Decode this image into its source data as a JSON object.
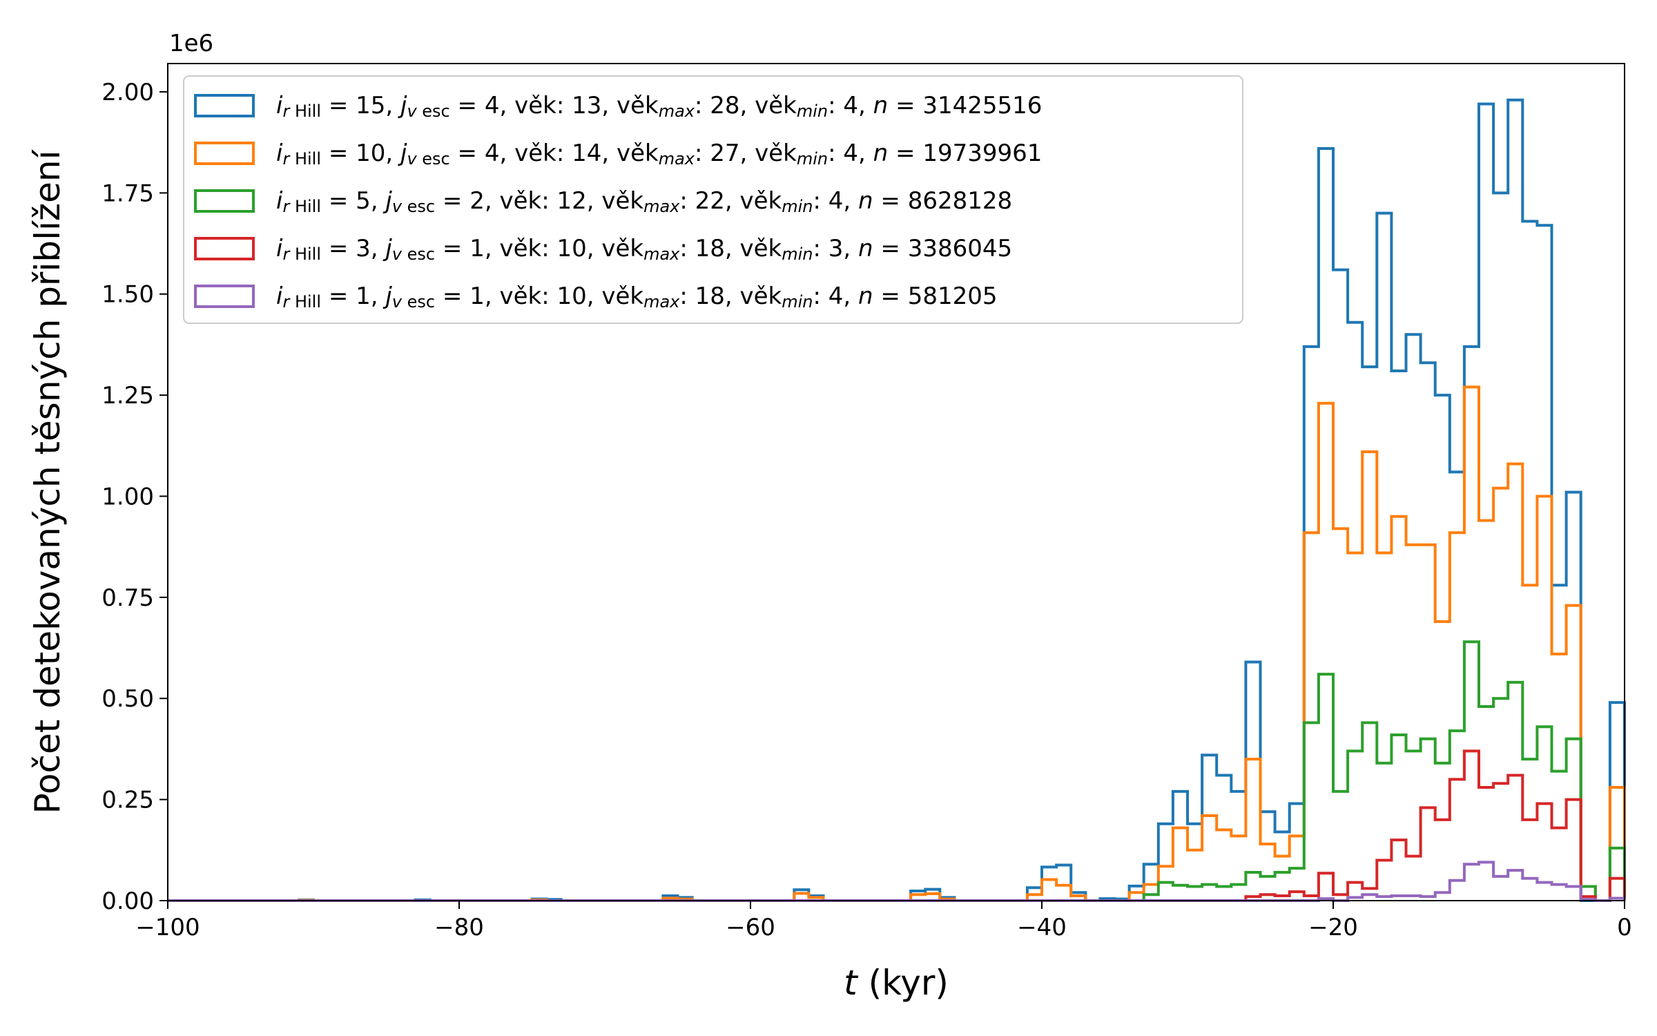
{
  "chart_data": {
    "type": "histogram-step",
    "xlabel_italic": "t",
    "xlabel_rest": " (kyr)",
    "ylabel": "Počet detekovaných těsných přiblížení",
    "y_offset_text": "1e6",
    "xlim": [
      -100,
      0
    ],
    "ylim": [
      0,
      2.07
    ],
    "y_scale_factor": 1000000,
    "x_ticks": [
      -100,
      -80,
      -60,
      -40,
      -20,
      0
    ],
    "x_tick_labels": [
      "−100",
      "−80",
      "−60",
      "−40",
      "−20",
      "0"
    ],
    "y_ticks": [
      0,
      0.25,
      0.5,
      0.75,
      1.0,
      1.25,
      1.5,
      1.75,
      2.0
    ],
    "y_tick_labels": [
      "0.00",
      "0.25",
      "0.50",
      "0.75",
      "1.00",
      "1.25",
      "1.50",
      "1.75",
      "2.00"
    ],
    "grid": false,
    "legend_position": "upper-left",
    "bin_width": 1,
    "series": [
      {
        "label_parts": {
          "i": "15",
          "j": "4",
          "vek": "13",
          "vekmax": "28",
          "vekmin": "4",
          "n": "31425516"
        },
        "color": "#1f77b4",
        "nonzero_bins": {
          "-91": 0.002,
          "-83": 0.002,
          "-75": 0.004,
          "-74": 0.003,
          "-66": 0.012,
          "-65": 0.008,
          "-57": 0.027,
          "-56": 0.012,
          "-49": 0.024,
          "-48": 0.028,
          "-47": 0.008,
          "-41": 0.032,
          "-40": 0.083,
          "-39": 0.088,
          "-38": 0.02,
          "-36": 0.005,
          "-35": 0.004,
          "-34": 0.036,
          "-33": 0.09,
          "-32": 0.19,
          "-31": 0.27,
          "-30": 0.19,
          "-29": 0.36,
          "-28": 0.31,
          "-27": 0.27,
          "-26": 0.59,
          "-25": 0.22,
          "-24": 0.17,
          "-23": 0.24,
          "-22": 1.37,
          "-21": 1.86,
          "-20": 1.56,
          "-19": 1.43,
          "-18": 1.32,
          "-17": 1.7,
          "-16": 1.31,
          "-15": 1.4,
          "-14": 1.33,
          "-13": 1.25,
          "-12": 1.06,
          "-11": 1.37,
          "-10": 1.97,
          "-9": 1.75,
          "-8": 1.98,
          "-7": 1.68,
          "-6": 1.67,
          "-5": 0.78,
          "-4": 1.01,
          "-1": 0.49
        }
      },
      {
        "label_parts": {
          "i": "10",
          "j": "4",
          "vek": "14",
          "vekmax": "27",
          "vekmin": "4",
          "n": "19739961"
        },
        "color": "#ff7f0e",
        "nonzero_bins": {
          "-91": 0.001,
          "-75": 0.002,
          "-66": 0.006,
          "-65": 0.004,
          "-57": 0.018,
          "-56": 0.008,
          "-49": 0.015,
          "-48": 0.017,
          "-47": 0.004,
          "-41": 0.015,
          "-40": 0.052,
          "-39": 0.038,
          "-38": 0.012,
          "-34": 0.02,
          "-33": 0.04,
          "-32": 0.085,
          "-31": 0.18,
          "-30": 0.125,
          "-29": 0.21,
          "-28": 0.175,
          "-27": 0.16,
          "-26": 0.35,
          "-25": 0.14,
          "-24": 0.11,
          "-23": 0.16,
          "-22": 0.91,
          "-21": 1.23,
          "-20": 0.92,
          "-19": 0.86,
          "-18": 1.11,
          "-17": 0.86,
          "-16": 0.95,
          "-15": 0.88,
          "-14": 0.88,
          "-13": 0.69,
          "-12": 0.91,
          "-11": 1.27,
          "-10": 0.94,
          "-9": 1.02,
          "-8": 1.08,
          "-7": 0.78,
          "-6": 1.0,
          "-5": 0.61,
          "-4": 0.73,
          "-3": 0.035,
          "-1": 0.28
        }
      },
      {
        "label_parts": {
          "i": " 5",
          "j": "2",
          "vek": "12",
          "vekmax": "22",
          "vekmin": "4",
          "n": "8628128"
        },
        "color": "#2ca02c",
        "nonzero_bins": {
          "-33": 0.015,
          "-32": 0.045,
          "-31": 0.038,
          "-30": 0.035,
          "-29": 0.04,
          "-28": 0.035,
          "-27": 0.04,
          "-26": 0.07,
          "-25": 0.06,
          "-24": 0.07,
          "-23": 0.08,
          "-22": 0.44,
          "-21": 0.56,
          "-20": 0.27,
          "-19": 0.37,
          "-18": 0.44,
          "-17": 0.34,
          "-16": 0.41,
          "-15": 0.37,
          "-14": 0.4,
          "-13": 0.34,
          "-12": 0.42,
          "-11": 0.64,
          "-10": 0.48,
          "-9": 0.5,
          "-8": 0.54,
          "-7": 0.35,
          "-6": 0.43,
          "-5": 0.32,
          "-4": 0.4,
          "-3": 0.035,
          "-1": 0.13
        }
      },
      {
        "label_parts": {
          "i": " 3",
          "j": "1",
          "vek": "10",
          "vekmax": "18",
          "vekmin": "3",
          "n": "3386045"
        },
        "color": "#d62728",
        "nonzero_bins": {
          "-26": 0.01,
          "-25": 0.015,
          "-24": 0.012,
          "-23": 0.022,
          "-22": 0.012,
          "-21": 0.068,
          "-20": 0.015,
          "-19": 0.045,
          "-18": 0.03,
          "-17": 0.1,
          "-16": 0.15,
          "-15": 0.11,
          "-14": 0.23,
          "-13": 0.2,
          "-12": 0.3,
          "-11": 0.37,
          "-10": 0.28,
          "-9": 0.29,
          "-8": 0.31,
          "-7": 0.2,
          "-6": 0.24,
          "-5": 0.18,
          "-4": 0.25,
          "-3": 0.01,
          "-1": 0.055
        }
      },
      {
        "label_parts": {
          "i": " 1",
          "j": "1",
          "vek": "10",
          "vekmax": "18",
          "vekmin": "4",
          "n": "581205"
        },
        "color": "#9467bd",
        "nonzero_bins": {
          "-21": 0.005,
          "-19": 0.008,
          "-18": 0.015,
          "-17": 0.01,
          "-16": 0.012,
          "-15": 0.012,
          "-14": 0.01,
          "-13": 0.02,
          "-12": 0.05,
          "-11": 0.09,
          "-10": 0.095,
          "-9": 0.06,
          "-8": 0.075,
          "-7": 0.055,
          "-6": 0.045,
          "-5": 0.04,
          "-4": 0.035,
          "-3": 0.003,
          "-1": 0.006
        }
      }
    ]
  }
}
